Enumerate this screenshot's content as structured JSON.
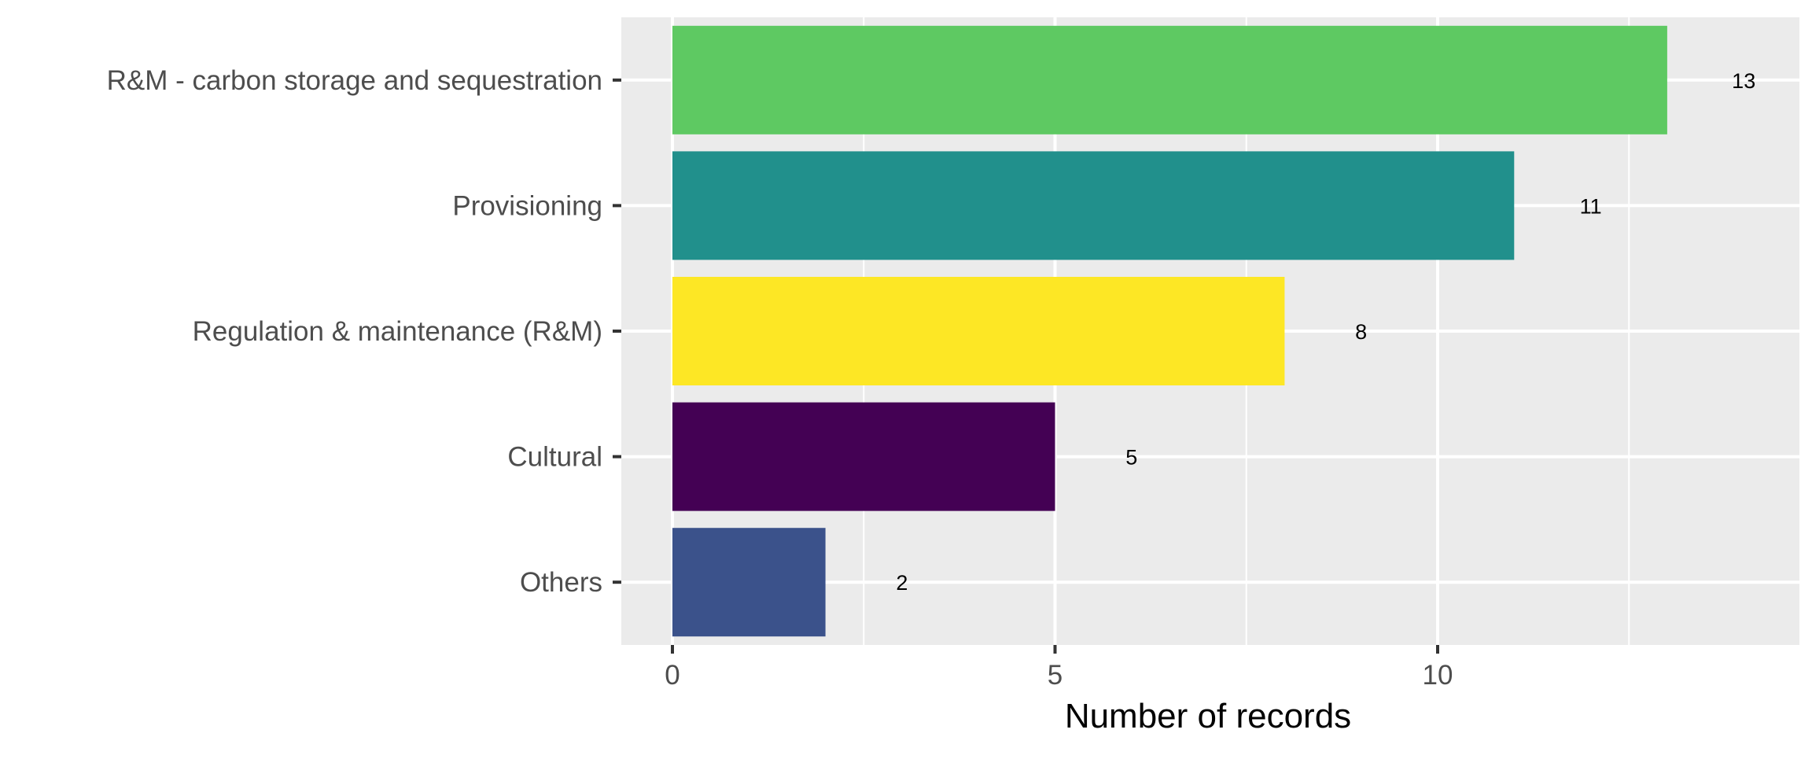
{
  "chart_data": {
    "type": "bar",
    "orientation": "horizontal",
    "title": "",
    "xlabel": "Number of records",
    "ylabel": "",
    "categories": [
      "R&M - carbon storage and sequestration",
      "Provisioning",
      "Regulation & maintenance (R&M)",
      "Cultural",
      "Others"
    ],
    "values": [
      13,
      11,
      8,
      5,
      2
    ],
    "data_labels": [
      "13",
      "11",
      "8",
      "5",
      "2"
    ],
    "bar_colors": [
      "#5EC962",
      "#21908C",
      "#FDE725",
      "#440154",
      "#3B528B"
    ],
    "xlim": [
      0,
      14.5
    ],
    "x_ticks": [
      0,
      5,
      10
    ],
    "x_tick_labels": [
      "0",
      "5",
      "10"
    ],
    "grid": true,
    "legend": "none",
    "panel_background": "#EBEBEB",
    "grid_color": "#FFFFFF"
  }
}
